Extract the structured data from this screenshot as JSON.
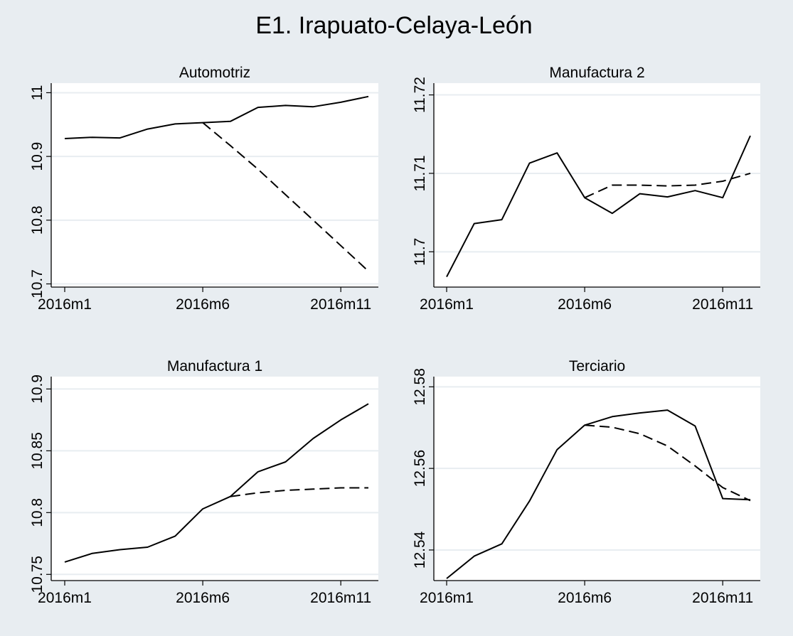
{
  "figure_title": "E1. Irapuato-Celaya-León",
  "colors": {
    "background": "#e8edf1",
    "plot_area": "#ffffff",
    "gridline": "#e8edf1",
    "line": "#000000"
  },
  "chart_data": [
    {
      "type": "line",
      "title": "Automotriz",
      "x": [
        "2016m1",
        "2016m2",
        "2016m3",
        "2016m4",
        "2016m5",
        "2016m6",
        "2016m7",
        "2016m8",
        "2016m9",
        "2016m10",
        "2016m11",
        "2016m12"
      ],
      "xticks": [
        "2016m1",
        "2016m6",
        "2016m11"
      ],
      "yticks": [
        "10.7",
        "10.8",
        "10.9",
        "11"
      ],
      "ylim": [
        10.695,
        11.015
      ],
      "grid": true,
      "series": [
        {
          "style": "solid",
          "values": [
            10.928,
            10.93,
            10.929,
            10.943,
            10.951,
            10.953,
            10.955,
            10.977,
            10.98,
            10.978,
            10.985,
            10.994
          ]
        },
        {
          "style": "dashed",
          "values": [
            null,
            null,
            null,
            null,
            null,
            10.953,
            10.917,
            10.88,
            10.84,
            10.8,
            10.76,
            10.72
          ]
        }
      ]
    },
    {
      "type": "line",
      "title": "Manufactura 2",
      "x": [
        "2016m1",
        "2016m2",
        "2016m3",
        "2016m4",
        "2016m5",
        "2016m6",
        "2016m7",
        "2016m8",
        "2016m9",
        "2016m10",
        "2016m11",
        "2016m12"
      ],
      "xticks": [
        "2016m1",
        "2016m6",
        "2016m11"
      ],
      "yticks": [
        "11.7",
        "11.71",
        "11.72"
      ],
      "ylim": [
        11.6955,
        11.7215
      ],
      "grid": true,
      "series": [
        {
          "style": "solid",
          "values": [
            11.6968,
            11.7036,
            11.7041,
            11.7113,
            11.7126,
            11.7069,
            11.7049,
            11.7074,
            11.707,
            11.7078,
            11.7069,
            11.7148
          ]
        },
        {
          "style": "dashed",
          "values": [
            null,
            null,
            null,
            null,
            null,
            11.7069,
            11.7085,
            11.7085,
            11.7084,
            11.7085,
            11.709,
            11.71
          ]
        }
      ]
    },
    {
      "type": "line",
      "title": "Manufactura 1",
      "x": [
        "2016m1",
        "2016m2",
        "2016m3",
        "2016m4",
        "2016m5",
        "2016m6",
        "2016m7",
        "2016m8",
        "2016m9",
        "2016m10",
        "2016m11",
        "2016m12"
      ],
      "xticks": [
        "2016m1",
        "2016m6",
        "2016m11"
      ],
      "yticks": [
        "10.75",
        "10.8",
        "10.85",
        "10.9"
      ],
      "ylim": [
        10.745,
        10.91
      ],
      "grid": true,
      "series": [
        {
          "style": "solid",
          "values": [
            10.76,
            10.767,
            10.77,
            10.772,
            10.781,
            10.803,
            10.813,
            10.833,
            10.841,
            10.86,
            10.875,
            10.888
          ]
        },
        {
          "style": "dashed",
          "values": [
            null,
            null,
            null,
            null,
            null,
            null,
            10.813,
            10.816,
            10.818,
            10.819,
            10.82,
            10.82
          ]
        }
      ]
    },
    {
      "type": "line",
      "title": "Terciario",
      "x": [
        "2016m1",
        "2016m2",
        "2016m3",
        "2016m4",
        "2016m5",
        "2016m6",
        "2016m7",
        "2016m8",
        "2016m9",
        "2016m10",
        "2016m11",
        "2016m12"
      ],
      "xticks": [
        "2016m1",
        "2016m6",
        "2016m11"
      ],
      "yticks": [
        "12.54",
        "12.56",
        "12.58"
      ],
      "ylim": [
        12.5325,
        12.5825
      ],
      "grid": true,
      "series": [
        {
          "style": "solid",
          "values": [
            12.533,
            12.5385,
            12.5415,
            12.552,
            12.5646,
            12.5706,
            12.5727,
            12.5736,
            12.5743,
            12.5704,
            12.5526,
            12.5523
          ]
        },
        {
          "style": "dashed",
          "values": [
            null,
            null,
            null,
            null,
            null,
            12.5706,
            12.5701,
            12.5685,
            12.5655,
            12.5606,
            12.5553,
            12.5521
          ]
        }
      ]
    }
  ]
}
